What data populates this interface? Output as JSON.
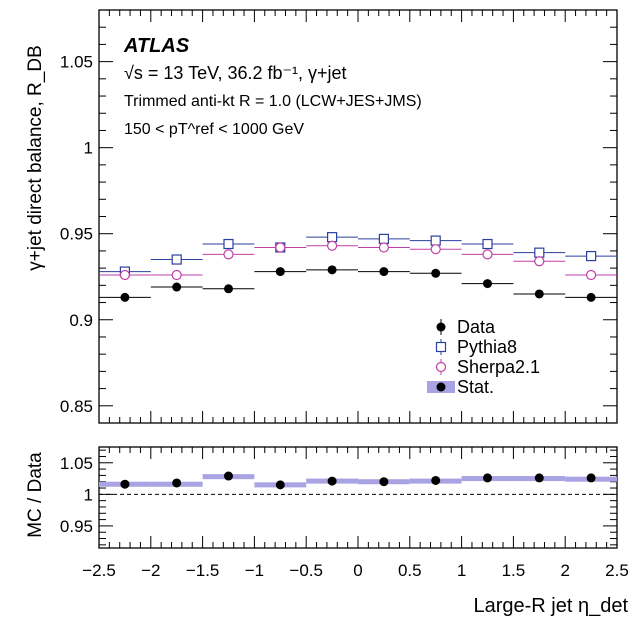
{
  "chart_data": [
    {
      "type": "scatter",
      "panel": "main",
      "atlas_label": "ATLAS",
      "energy_label": "√s = 13 TeV, 36.2 fb⁻¹, γ+jet",
      "algo_label": "Trimmed anti-kt R = 1.0 (LCW+JES+JMS)",
      "range_label": "150 < pT^ref < 1000 GeV",
      "ylabel": "γ+jet direct balance, R_DB",
      "xlim": [
        -2.5,
        2.5
      ],
      "ylim": [
        0.84,
        1.08
      ],
      "x_ticks": [
        -2.5,
        -2,
        -1.5,
        -1,
        -0.5,
        0,
        0.5,
        1,
        1.5,
        2,
        2.5
      ],
      "y_ticks": [
        0.85,
        0.9,
        0.95,
        1,
        1.05
      ],
      "y_tick_labels": [
        "0.85",
        "0.9",
        "0.95",
        "1",
        "1.05"
      ],
      "bin_edges": [
        -2.5,
        -2,
        -1.5,
        -1,
        -0.5,
        0,
        0.5,
        1,
        1.5,
        2,
        2.5
      ],
      "x": [
        -2.25,
        -1.75,
        -1.25,
        -0.75,
        -0.25,
        0.25,
        0.75,
        1.25,
        1.75,
        2.25
      ],
      "series": [
        {
          "name": "Data",
          "marker": "filled-circle",
          "color": "#000000",
          "values": [
            0.913,
            0.919,
            0.918,
            0.928,
            0.929,
            0.928,
            0.927,
            0.921,
            0.915,
            0.913
          ]
        },
        {
          "name": "Pythia8",
          "marker": "open-square",
          "color": "#2b3f9e",
          "values": [
            0.928,
            0.935,
            0.944,
            0.942,
            0.948,
            0.947,
            0.946,
            0.944,
            0.939,
            0.937
          ]
        },
        {
          "name": "Sherpa2.1",
          "marker": "open-circle",
          "color": "#c23fa8",
          "values": [
            0.926,
            0.926,
            0.938,
            0.942,
            0.943,
            0.942,
            0.941,
            0.938,
            0.934,
            0.926
          ]
        }
      ],
      "legend": [
        "Data",
        "Pythia8",
        "Sherpa2.1",
        "Stat."
      ],
      "legend_position": "bottom-right",
      "stat_band_color": "#a9a3e3"
    },
    {
      "type": "scatter",
      "panel": "ratio",
      "ylabel": "MC / Data",
      "xlabel": "Large-R jet η_det",
      "xlim": [
        -2.5,
        2.5
      ],
      "ylim": [
        0.915,
        1.075
      ],
      "x_ticks": [
        -2.5,
        -2,
        -1.5,
        -1,
        -0.5,
        0,
        0.5,
        1,
        1.5,
        2,
        2.5
      ],
      "x_tick_labels": [
        "−2.5",
        "−2",
        "−1.5",
        "−1",
        "−0.5",
        "0",
        "0.5",
        "1",
        "1.5",
        "2",
        "2.5"
      ],
      "y_ticks": [
        0.95,
        1,
        1.05
      ],
      "y_tick_labels": [
        "0.95",
        "1",
        "1.05"
      ],
      "reference_line": 1,
      "x": [
        -2.25,
        -1.75,
        -1.25,
        -0.75,
        -0.25,
        0.25,
        0.75,
        1.25,
        1.75,
        2.25
      ],
      "values": [
        1.016,
        1.018,
        1.029,
        1.015,
        1.021,
        1.02,
        1.022,
        1.026,
        1.026,
        1.026
      ],
      "band": [
        1.016,
        1.016,
        1.028,
        1.015,
        1.021,
        1.02,
        1.021,
        1.025,
        1.025,
        1.024
      ]
    }
  ]
}
